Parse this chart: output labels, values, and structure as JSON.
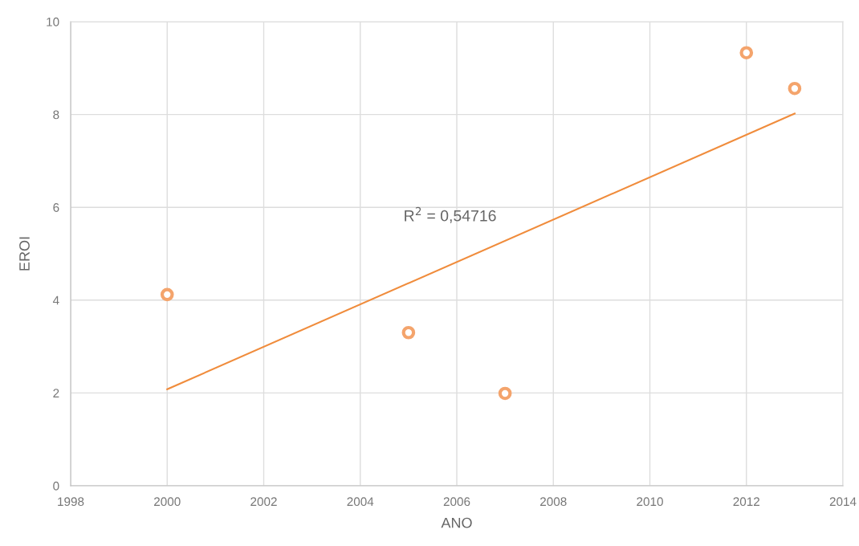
{
  "chart_data": {
    "type": "scatter",
    "xlabel": "ANO",
    "ylabel": "EROI",
    "series": [
      {
        "color": "#f4a46c",
        "x": [
          2000,
          2005,
          2007,
          2012,
          2013
        ],
        "values": [
          4.12,
          3.3,
          1.99,
          9.33,
          8.56
        ],
        "marker": "circle"
      },
      {
        "type": "line",
        "color": "#f08c3c",
        "x": [
          2000,
          2013
        ],
        "values": [
          2.08,
          8.02
        ],
        "marker": "none",
        "line_style": "solid"
      }
    ],
    "xlim": [
      1998,
      2014
    ],
    "xticks": [
      1998,
      2000,
      2002,
      2004,
      2006,
      2008,
      2010,
      2012,
      2014
    ],
    "ylim": [
      0,
      10
    ],
    "yticks": [
      0,
      2,
      4,
      6,
      8,
      10
    ],
    "grid": true,
    "legend": false,
    "annotations": [
      "R$^{2}$ = 0,54716"
    ]
  }
}
